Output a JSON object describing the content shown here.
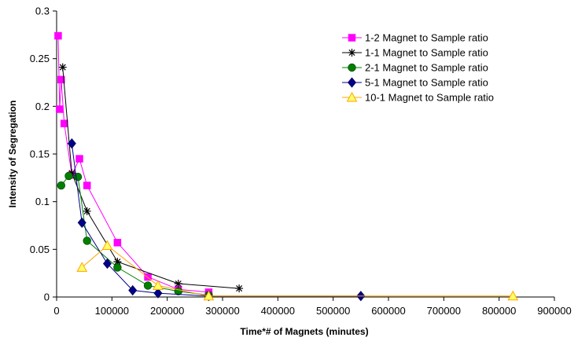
{
  "chart_data": {
    "type": "scatter",
    "title": "",
    "xlabel": "Time*# of Magnets (minutes)",
    "ylabel": "Intensity of Segregation",
    "xlim": [
      0,
      900000
    ],
    "ylim": [
      0,
      0.3
    ],
    "xticks": [
      0,
      100000,
      200000,
      300000,
      400000,
      500000,
      600000,
      700000,
      800000,
      900000
    ],
    "yticks": [
      0,
      0.05,
      0.1,
      0.15,
      0.2,
      0.25,
      0.3
    ],
    "xtick_labels": [
      "0",
      "100000",
      "200000",
      "300000",
      "400000",
      "500000",
      "600000",
      "700000",
      "800000",
      "900000"
    ],
    "ytick_labels": [
      "0",
      "0.05",
      "0.1",
      "0.15",
      "0.2",
      "0.25",
      "0.3"
    ],
    "grid": false,
    "legend_position": "top-right",
    "series": [
      {
        "name": "1-2 Magnet to Sample ratio",
        "color": "#ff00ff",
        "marker": "square",
        "x": [
          2750,
          5500,
          8250,
          13750,
          27500,
          41250,
          55000,
          110000,
          165000,
          220000,
          275000
        ],
        "y": [
          0.274,
          0.197,
          0.228,
          0.182,
          0.128,
          0.145,
          0.117,
          0.057,
          0.021,
          0.008,
          0.005
        ]
      },
      {
        "name": "1-1 Magnet to Sample ratio",
        "color": "#000000",
        "marker": "star",
        "x": [
          11000,
          27500,
          55000,
          110000,
          220000,
          330000
        ],
        "y": [
          0.241,
          0.13,
          0.09,
          0.037,
          0.014,
          0.009
        ]
      },
      {
        "name": "2-1 Magnet to Sample ratio",
        "color": "#008000",
        "marker": "circle",
        "x": [
          8250,
          22000,
          38500,
          55000,
          110000,
          165000,
          220000,
          275000
        ],
        "y": [
          0.117,
          0.127,
          0.126,
          0.059,
          0.031,
          0.012,
          0.006,
          0.002
        ]
      },
      {
        "name": "5-1 Magnet to Sample ratio",
        "color": "#00008b",
        "marker": "diamond",
        "x": [
          27500,
          45833,
          91667,
          137500,
          183333,
          275000,
          550000
        ],
        "y": [
          0.161,
          0.078,
          0.035,
          0.007,
          0.004,
          0.001,
          0.001
        ]
      },
      {
        "name": "10-1 Magnet to Sample ratio",
        "color": "#ffa500",
        "fill": "#ffff66",
        "marker": "triangle",
        "x": [
          45833,
          91667,
          183333,
          275000,
          825000
        ],
        "y": [
          0.031,
          0.054,
          0.012,
          0.001,
          0.001
        ]
      }
    ]
  }
}
